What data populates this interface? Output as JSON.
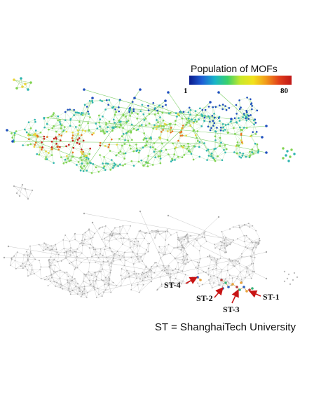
{
  "colorbar": {
    "title": "Population of MOFs",
    "min_label": "1",
    "max_label": "80",
    "colors": [
      "#0a1a8c",
      "#1f5fd6",
      "#19b5c9",
      "#3ad16a",
      "#c9e82a",
      "#f2e21c",
      "#f29a1a",
      "#e2401a",
      "#c01818"
    ]
  },
  "top_network": {
    "edge_color": "#7fcf6a",
    "node_colors": {
      "low": "#1f4fbf",
      "mid_low": "#2fb5b0",
      "mid": "#7fd34f",
      "mid_high": "#e8d53a",
      "high": "#e8741f",
      "max": "#c81a1a"
    }
  },
  "bottom_network": {
    "edge_color": "#c8c8c8",
    "node_color": "#a9a9a9",
    "highlight_colors": [
      "#2d5fbf",
      "#e8a23a",
      "#b83a3a",
      "#35b27a"
    ],
    "arrow_color": "#c81414"
  },
  "labels": [
    {
      "id": "st1",
      "text": "ST-1"
    },
    {
      "id": "st2",
      "text": "ST-2"
    },
    {
      "id": "st3",
      "text": "ST-3"
    },
    {
      "id": "st4",
      "text": "ST-4"
    }
  ],
  "caption": "ST = ShanghaiTech University"
}
